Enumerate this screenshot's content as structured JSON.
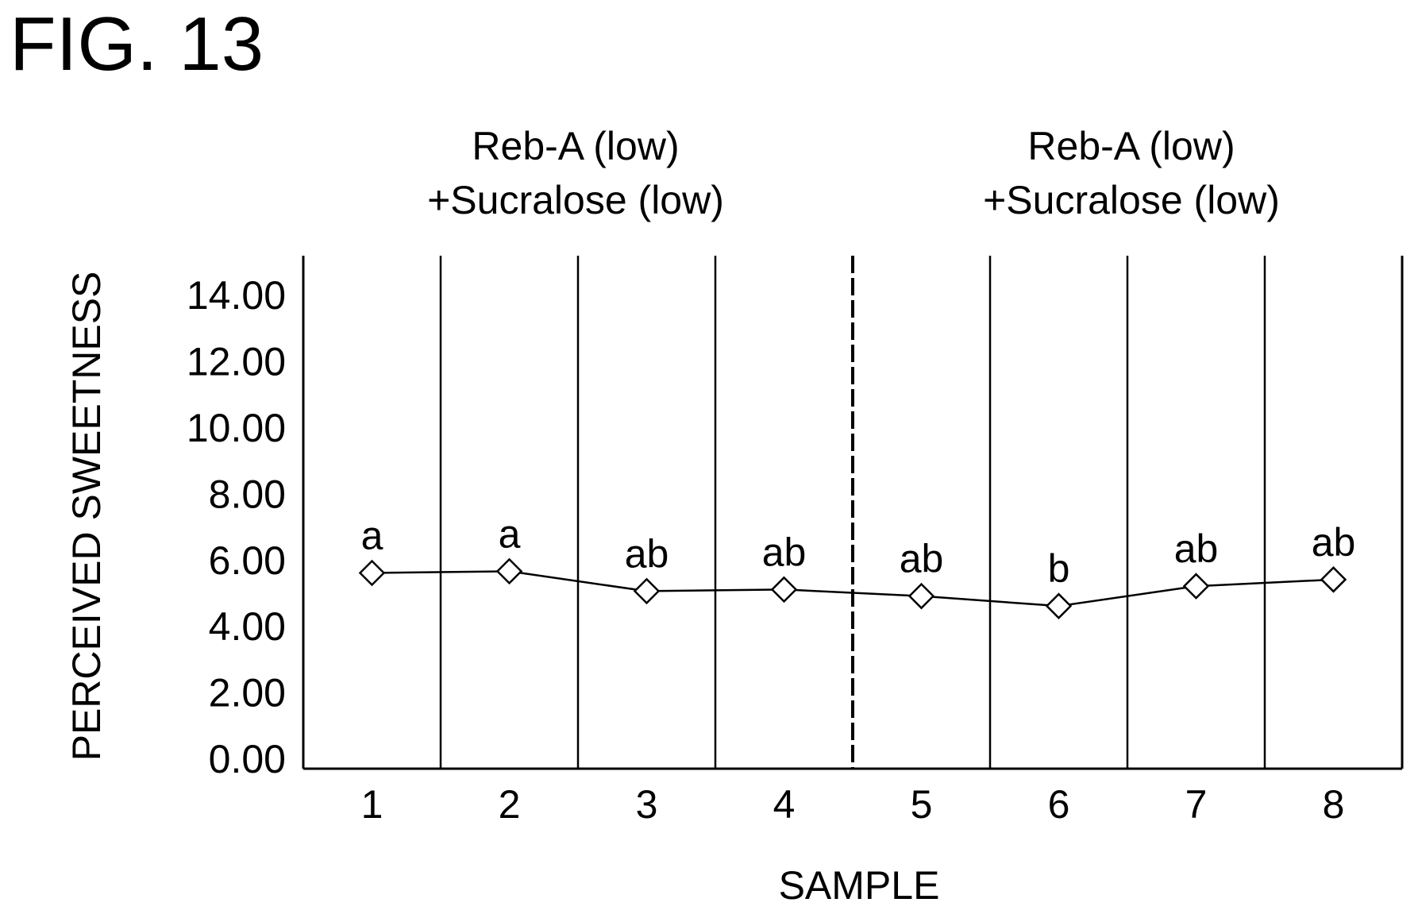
{
  "figure_label": "FIG. 13",
  "groups": [
    {
      "line1": "Reb-A (low)",
      "line2": "+Sucralose (low)"
    },
    {
      "line1": "Reb-A (low)",
      "line2": "+Sucralose (low)"
    }
  ],
  "chart_data": {
    "type": "line",
    "xlabel": "SAMPLE",
    "ylabel": "PERCEIVED SWEETNESS",
    "ylim": [
      0,
      14
    ],
    "yticks": [
      "0.00",
      "2.00",
      "4.00",
      "6.00",
      "8.00",
      "10.00",
      "12.00",
      "14.00"
    ],
    "categories": [
      "1",
      "2",
      "3",
      "4",
      "5",
      "6",
      "7",
      "8"
    ],
    "group_divider_after_category": 4,
    "grid": "vertical lines between samples",
    "marker": "open diamond",
    "series": [
      {
        "values": [
          5.6,
          5.65,
          5.05,
          5.1,
          4.9,
          4.6,
          5.2,
          5.4
        ],
        "significance_labels": [
          "a",
          "a",
          "ab",
          "ab",
          "ab",
          "b",
          "ab",
          "ab"
        ]
      }
    ]
  }
}
